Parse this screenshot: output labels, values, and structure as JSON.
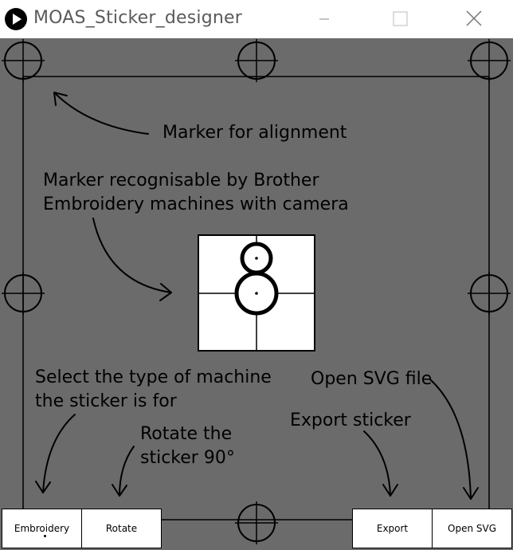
{
  "window": {
    "title": "MOAS_Sticker_designer",
    "controls": [
      "minimize-icon",
      "maximize-icon",
      "close-icon"
    ],
    "app_icon": "play-icon"
  },
  "canvas": {
    "background": "#6b6b6b",
    "annotations": {
      "alignment": "Marker for alignment",
      "brother_line1": "Marker recognisable by Brother",
      "brother_line2": "Embroidery machines with camera",
      "machine_line1": "Select the type of machine",
      "machine_line2": "the sticker is for",
      "rotate_line1": "Rotate the",
      "rotate_line2": "sticker 90°",
      "export": "Export sticker",
      "open_svg": "Open SVG file"
    }
  },
  "buttons": {
    "embroidery": "Embroidery",
    "rotate": "Rotate",
    "export": "Export",
    "open_svg": "Open SVG"
  }
}
